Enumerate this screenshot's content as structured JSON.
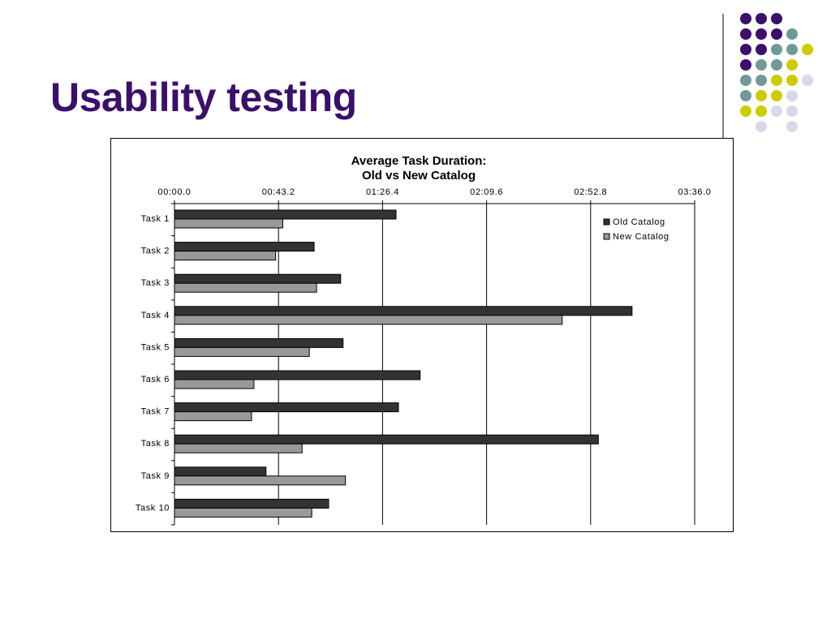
{
  "slide": {
    "title": "Usability testing"
  },
  "decoration": {
    "dot_colors": {
      "purple": "#3b0f6b",
      "teal": "#6f9a9a",
      "yellow": "#cccc00",
      "lavender": "#d8d8ea"
    },
    "divider_color": "#000000"
  },
  "chart_data": {
    "type": "bar",
    "orientation": "horizontal",
    "title": "Average Task Duration:",
    "subtitle": "Old vs New Catalog",
    "xlabel": "",
    "ylabel": "",
    "x_unit": "seconds",
    "xlim": [
      0,
      216
    ],
    "x_ticks": [
      0,
      43.2,
      86.4,
      129.6,
      172.8,
      216
    ],
    "x_tick_labels": [
      "00:00.0",
      "00:43.2",
      "01:26.4",
      "02:09.6",
      "02:52.8",
      "03:36.0"
    ],
    "grid": "vertical major gridlines",
    "legend_position": "top-right inside plot",
    "categories": [
      "Task 1",
      "Task 2",
      "Task 3",
      "Task 4",
      "Task 5",
      "Task 6",
      "Task 7",
      "Task 8",
      "Task 9",
      "Task 10"
    ],
    "series": [
      {
        "name": "Old Catalog",
        "color": "#333333",
        "values": [
          92,
          58,
          69,
          190,
          70,
          102,
          93,
          176,
          38,
          64
        ]
      },
      {
        "name": "New Catalog",
        "color": "#999999",
        "values": [
          45,
          42,
          59,
          161,
          56,
          33,
          32,
          53,
          71,
          57
        ]
      }
    ]
  }
}
